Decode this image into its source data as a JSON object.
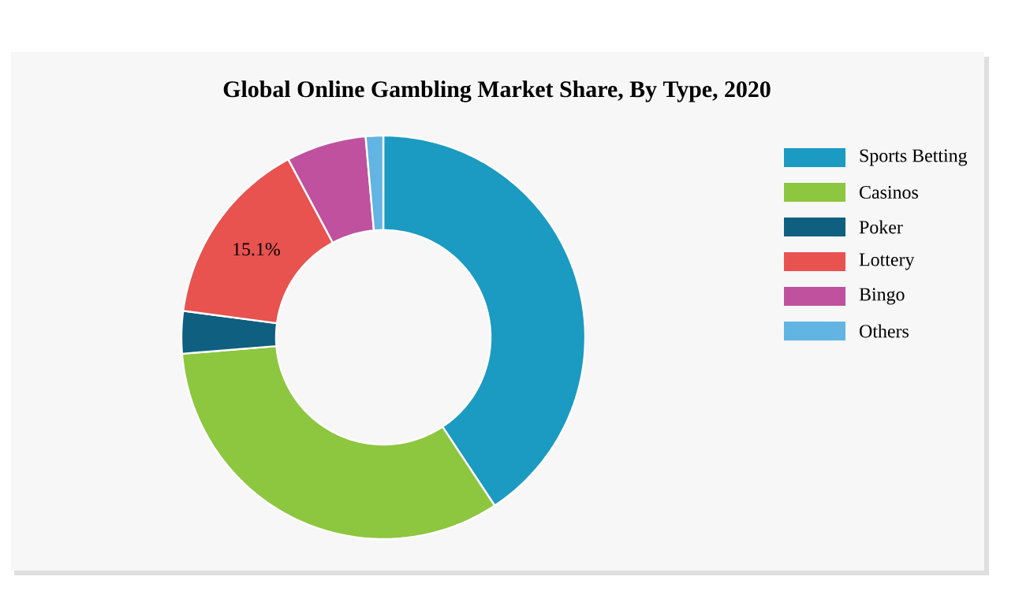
{
  "chart_data": {
    "type": "donut",
    "title": "Global Online Gambling Market Share, By Type, 2020",
    "categories": [
      "Sports Betting",
      "Casinos",
      "Poker",
      "Lottery",
      "Bingo",
      "Others"
    ],
    "values": [
      40.7,
      33,
      3.4,
      15.1,
      6.4,
      1.4
    ],
    "colors": [
      "#1b9ac2",
      "#8dc63f",
      "#0e5f80",
      "#e8524f",
      "#c0519f",
      "#62b4e3"
    ],
    "value_labels": [
      null,
      null,
      null,
      "15.1%",
      null,
      null
    ],
    "legend": "right"
  }
}
